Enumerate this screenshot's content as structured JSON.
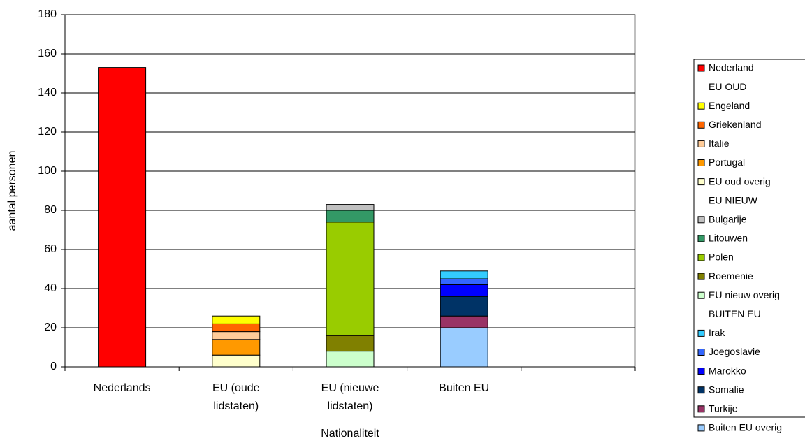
{
  "chart_data": {
    "type": "stacked-bar",
    "y_label": "aantal personen",
    "x_label": "Nationaliteit",
    "categories": [
      "Nederlands",
      "EU (oude lidstaten)",
      "EU (nieuwe lidstaten)",
      "Buiten EU",
      null
    ],
    "ylim": [
      0,
      180
    ],
    "yticks": [
      0,
      20,
      40,
      60,
      80,
      100,
      120,
      140,
      160,
      180
    ],
    "grid": true,
    "legend": "right",
    "series": [
      {
        "name": "Nederland",
        "color": "#ff0000",
        "values": [
          153,
          null,
          null,
          null,
          null
        ]
      },
      {
        "name": "EU OUD",
        "color": null,
        "values": [
          null,
          null,
          null,
          null,
          null
        ]
      },
      {
        "name": "Engeland",
        "color": "#ffff00",
        "values": [
          null,
          4,
          null,
          null,
          null
        ]
      },
      {
        "name": "Griekenland",
        "color": "#ff6600",
        "values": [
          null,
          4,
          null,
          null,
          null
        ]
      },
      {
        "name": "Italie",
        "color": "#ffcc99",
        "values": [
          null,
          4,
          null,
          null,
          null
        ]
      },
      {
        "name": "Portugal",
        "color": "#ff9900",
        "values": [
          null,
          8,
          null,
          null,
          null
        ]
      },
      {
        "name": "EU oud overig",
        "color": "#ffffcc",
        "values": [
          null,
          6,
          null,
          null,
          null
        ]
      },
      {
        "name": "EU NIEUW",
        "color": null,
        "values": [
          null,
          null,
          null,
          null,
          null
        ]
      },
      {
        "name": "Bulgarije",
        "color": "#c0c0c0",
        "values": [
          null,
          null,
          3,
          null,
          null
        ]
      },
      {
        "name": "Litouwen",
        "color": "#339966",
        "values": [
          null,
          null,
          6,
          null,
          null
        ]
      },
      {
        "name": "Polen",
        "color": "#99cc00",
        "values": [
          null,
          null,
          58,
          null,
          null
        ]
      },
      {
        "name": "Roemenie",
        "color": "#808000",
        "values": [
          null,
          null,
          8,
          null,
          null
        ]
      },
      {
        "name": "EU nieuw overig",
        "color": "#ccffcc",
        "values": [
          null,
          null,
          8,
          null,
          null
        ]
      },
      {
        "name": "BUITEN EU",
        "color": null,
        "values": [
          null,
          null,
          null,
          null,
          null
        ]
      },
      {
        "name": "Irak",
        "color": "#33ccff",
        "values": [
          null,
          null,
          null,
          4,
          null
        ]
      },
      {
        "name": "Joegoslavie",
        "color": "#3366ff",
        "values": [
          null,
          null,
          null,
          3,
          null
        ]
      },
      {
        "name": "Marokko",
        "color": "#0000ff",
        "values": [
          null,
          null,
          null,
          6,
          null
        ]
      },
      {
        "name": "Somalie",
        "color": "#003366",
        "values": [
          null,
          null,
          null,
          10,
          null
        ]
      },
      {
        "name": "Turkije",
        "color": "#993366",
        "values": [
          null,
          null,
          null,
          6,
          null
        ]
      },
      {
        "name": "Buiten EU overig",
        "color": "#99ccff",
        "values": [
          null,
          null,
          null,
          20,
          null
        ]
      }
    ]
  }
}
